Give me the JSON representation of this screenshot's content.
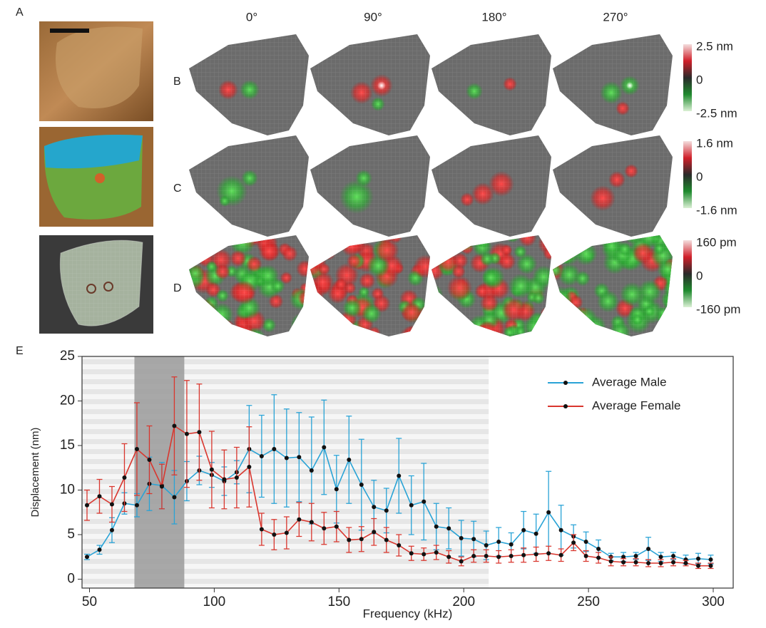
{
  "figure": {
    "panel_labels": [
      "A",
      "B",
      "C",
      "D",
      "E"
    ],
    "columns": [
      "0°",
      "90°",
      "180°",
      "270°"
    ],
    "colorbars": [
      {
        "top": "2.5 nm",
        "mid": "0",
        "bottom": "-2.5 nm"
      },
      {
        "top": "1.6 nm",
        "mid": "0",
        "bottom": "-1.6 nm"
      },
      {
        "top": "160 pm",
        "mid": "0",
        "bottom": "-160 pm"
      }
    ]
  },
  "chart_data": {
    "type": "line",
    "x_label": "Frequency (kHz)",
    "y_label": "Displacement (nm)",
    "x": [
      49,
      54,
      59,
      64,
      69,
      74,
      79,
      84,
      89,
      94,
      99,
      104,
      109,
      114,
      119,
      124,
      129,
      134,
      139,
      144,
      149,
      154,
      159,
      164,
      169,
      174,
      179,
      184,
      189,
      194,
      199,
      204,
      209,
      214,
      219,
      224,
      229,
      234,
      239,
      244,
      249,
      254,
      259,
      264,
      269,
      274,
      279,
      284,
      289,
      294,
      299
    ],
    "series": [
      {
        "name": "Average Male",
        "color": "#29a3d6",
        "values": [
          2.5,
          3.3,
          5.5,
          8.5,
          8.3,
          10.7,
          10.5,
          9.2,
          11,
          12.2,
          11.7,
          11,
          12,
          14.6,
          13.8,
          14.6,
          13.6,
          13.7,
          12.2,
          14.8,
          10.1,
          13.4,
          10.6,
          8.1,
          7.7,
          11.6,
          8.3,
          8.7,
          5.9,
          5.7,
          4.6,
          4.5,
          3.8,
          4.2,
          3.9,
          5.5,
          5.1,
          7.5,
          5.5,
          4.8,
          4.2,
          3.4,
          2.5,
          2.5,
          2.6,
          3.4,
          2.5,
          2.6,
          2.2,
          2.3,
          2.2
        ],
        "errors": [
          0.3,
          0.5,
          1.4,
          1.2,
          1.3,
          3.0,
          2.6,
          3.0,
          2.2,
          1.6,
          1.4,
          1.6,
          1.3,
          4.9,
          4.6,
          6.1,
          5.5,
          5.0,
          6.0,
          5.3,
          3.8,
          4.9,
          5.1,
          3.0,
          2.5,
          4.2,
          3.3,
          4.3,
          2.6,
          2.3,
          2.0,
          2.0,
          1.6,
          1.6,
          1.3,
          2.1,
          2.2,
          4.6,
          2.8,
          1.3,
          1.1,
          1.0,
          0.4,
          0.5,
          0.4,
          1.3,
          0.5,
          0.4,
          0.5,
          0.6,
          0.5
        ]
      },
      {
        "name": "Average Female",
        "color": "#d9362e",
        "values": [
          8.3,
          9.3,
          8.4,
          11.4,
          14.6,
          13.4,
          10.4,
          17.2,
          16.3,
          16.5,
          12.3,
          11.2,
          11.4,
          12.6,
          5.6,
          5.0,
          5.2,
          6.7,
          6.4,
          5.7,
          5.9,
          4.4,
          4.5,
          5.3,
          4.4,
          3.8,
          2.9,
          2.8,
          3.0,
          2.5,
          2.0,
          2.6,
          2.6,
          2.5,
          2.6,
          2.7,
          2.8,
          2.9,
          2.7,
          4.1,
          2.6,
          2.4,
          2.0,
          1.9,
          1.9,
          1.8,
          1.8,
          1.9,
          1.8,
          1.5,
          1.5
        ],
        "errors": [
          1.7,
          1.9,
          2.0,
          3.8,
          5.2,
          3.8,
          2.5,
          5.5,
          6.0,
          5.4,
          4.3,
          3.3,
          3.4,
          4.5,
          1.8,
          1.7,
          1.8,
          1.9,
          2.1,
          1.8,
          1.7,
          1.4,
          1.4,
          1.5,
          1.4,
          1.2,
          0.8,
          0.7,
          0.8,
          0.7,
          0.5,
          0.7,
          0.7,
          0.7,
          0.7,
          0.8,
          0.8,
          0.8,
          0.7,
          0.9,
          0.6,
          0.6,
          0.5,
          0.4,
          0.4,
          0.4,
          0.4,
          0.4,
          0.3,
          0.3,
          0.3
        ]
      }
    ],
    "striped_band": [
      47,
      210
    ],
    "highlight": [
      68,
      88
    ],
    "xlim": [
      47,
      308
    ],
    "ylim": [
      -1,
      25
    ],
    "xticks": [
      50,
      100,
      150,
      200,
      250,
      300
    ],
    "yticks": [
      0,
      5,
      10,
      15,
      20,
      25
    ],
    "legend": "upper right"
  }
}
